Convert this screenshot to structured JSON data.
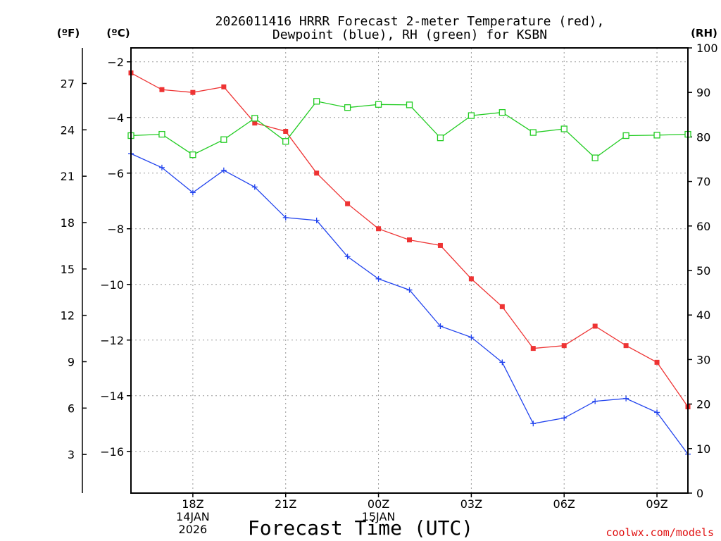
{
  "title": {
    "line1": "2026011416 HRRR Forecast 2-meter Temperature (red),",
    "line2": "Dewpoint (blue), RH (green) for KSBN"
  },
  "units": {
    "fahrenheit": "(ºF)",
    "celsius": "(ºC)",
    "rh": "(RH)"
  },
  "xlabel": "Forecast Time (UTC)",
  "credit": "coolwx.com/models",
  "colors": {
    "temperature": "#ee3333",
    "dewpoint": "#2244ee",
    "rh": "#22cc22",
    "credit": "#e01010"
  },
  "chart_data": {
    "type": "line",
    "x": [
      "16Z",
      "17Z",
      "18Z",
      "19Z",
      "20Z",
      "21Z",
      "22Z",
      "23Z",
      "00Z",
      "01Z",
      "02Z",
      "03Z",
      "04Z",
      "05Z",
      "06Z",
      "07Z",
      "08Z",
      "09Z",
      "10Z"
    ],
    "x_ticks": [
      {
        "index": 2,
        "lines": [
          "18Z",
          "14JAN",
          "2026"
        ]
      },
      {
        "index": 5,
        "lines": [
          "21Z"
        ]
      },
      {
        "index": 8,
        "lines": [
          "00Z",
          "15JAN"
        ]
      },
      {
        "index": 11,
        "lines": [
          "03Z"
        ]
      },
      {
        "index": 14,
        "lines": [
          "06Z"
        ]
      },
      {
        "index": 17,
        "lines": [
          "09Z"
        ]
      }
    ],
    "left_axis_celsius": {
      "ylim": [
        -17.5,
        -1.5
      ],
      "ticks": [
        -2,
        -4,
        -6,
        -8,
        -10,
        -12,
        -14,
        -16
      ]
    },
    "far_left_axis_fahrenheit": {
      "ticks": [
        27,
        24,
        21,
        18,
        15,
        12,
        9,
        6,
        3
      ]
    },
    "right_axis_rh": {
      "ylim": [
        0,
        100
      ],
      "ticks": [
        0,
        10,
        20,
        30,
        40,
        50,
        60,
        70,
        80,
        90,
        100
      ]
    },
    "grid": true,
    "series": [
      {
        "name": "Temperature",
        "axis": "celsius",
        "marker": "filled-square",
        "values": [
          -2.4,
          -3.0,
          -3.1,
          -2.9,
          -4.2,
          -4.5,
          -6.0,
          -7.1,
          -8.0,
          -8.4,
          -8.6,
          -9.8,
          -10.8,
          -12.3,
          -12.2,
          -11.5,
          -12.2,
          -12.8,
          -14.4
        ]
      },
      {
        "name": "Dewpoint",
        "axis": "celsius",
        "marker": "plus",
        "values": [
          -5.3,
          -5.8,
          -6.7,
          -5.9,
          -6.5,
          -7.6,
          -7.7,
          -9.0,
          -9.8,
          -10.2,
          -11.5,
          -11.9,
          -12.8,
          -15.0,
          -14.8,
          -14.2,
          -14.1,
          -14.6,
          -16.1
        ]
      },
      {
        "name": "RH",
        "axis": "rh",
        "marker": "open-square",
        "values": [
          80.3,
          80.6,
          76.0,
          79.4,
          84.2,
          79.0,
          88.0,
          86.6,
          87.3,
          87.2,
          79.8,
          84.8,
          85.5,
          81.0,
          81.8,
          75.3,
          80.3,
          80.4,
          80.6
        ]
      }
    ]
  }
}
